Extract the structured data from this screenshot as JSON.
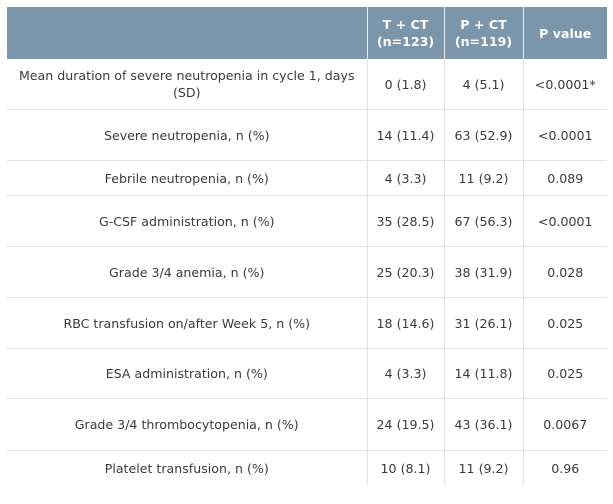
{
  "header": {
    "col0": "",
    "col1_line1": "T + CT",
    "col1_line2": "(n=123)",
    "col2_line1": "P + CT",
    "col2_line2": "(n=119)",
    "col3": "P value"
  },
  "rows": [
    {
      "label": "Mean duration of severe neutropenia in cycle 1, days (SD)",
      "tct": "0 (1.8)",
      "pct": "4 (5.1)",
      "p": "<0.0001*"
    },
    {
      "label": "Severe neutropenia, n (%)",
      "tct": "14 (11.4)",
      "pct": "63 (52.9)",
      "p": "<0.0001"
    },
    {
      "label": "Febrile neutropenia, n (%)",
      "tct": "4 (3.3)",
      "pct": "11 (9.2)",
      "p": "0.089"
    },
    {
      "label": "G-CSF administration, n (%)",
      "tct": "35 (28.5)",
      "pct": "67 (56.3)",
      "p": "<0.0001"
    },
    {
      "label": "Grade 3/4 anemia, n (%)",
      "tct": "25 (20.3)",
      "pct": "38 (31.9)",
      "p": "0.028"
    },
    {
      "label": "RBC transfusion on/after Week 5, n (%)",
      "tct": "18 (14.6)",
      "pct": "31 (26.1)",
      "p": "0.025"
    },
    {
      "label": "ESA administration, n (%)",
      "tct": "4 (3.3)",
      "pct": "14 (11.8)",
      "p": "0.025"
    },
    {
      "label": "Grade 3/4 thrombocytopenia, n (%)",
      "tct": "24 (19.5)",
      "pct": "43 (36.1)",
      "p": "0.0067"
    },
    {
      "label": "Platelet transfusion, n (%)",
      "tct": "10 (8.1)",
      "pct": "11 (9.2)",
      "p": "0.96"
    }
  ]
}
